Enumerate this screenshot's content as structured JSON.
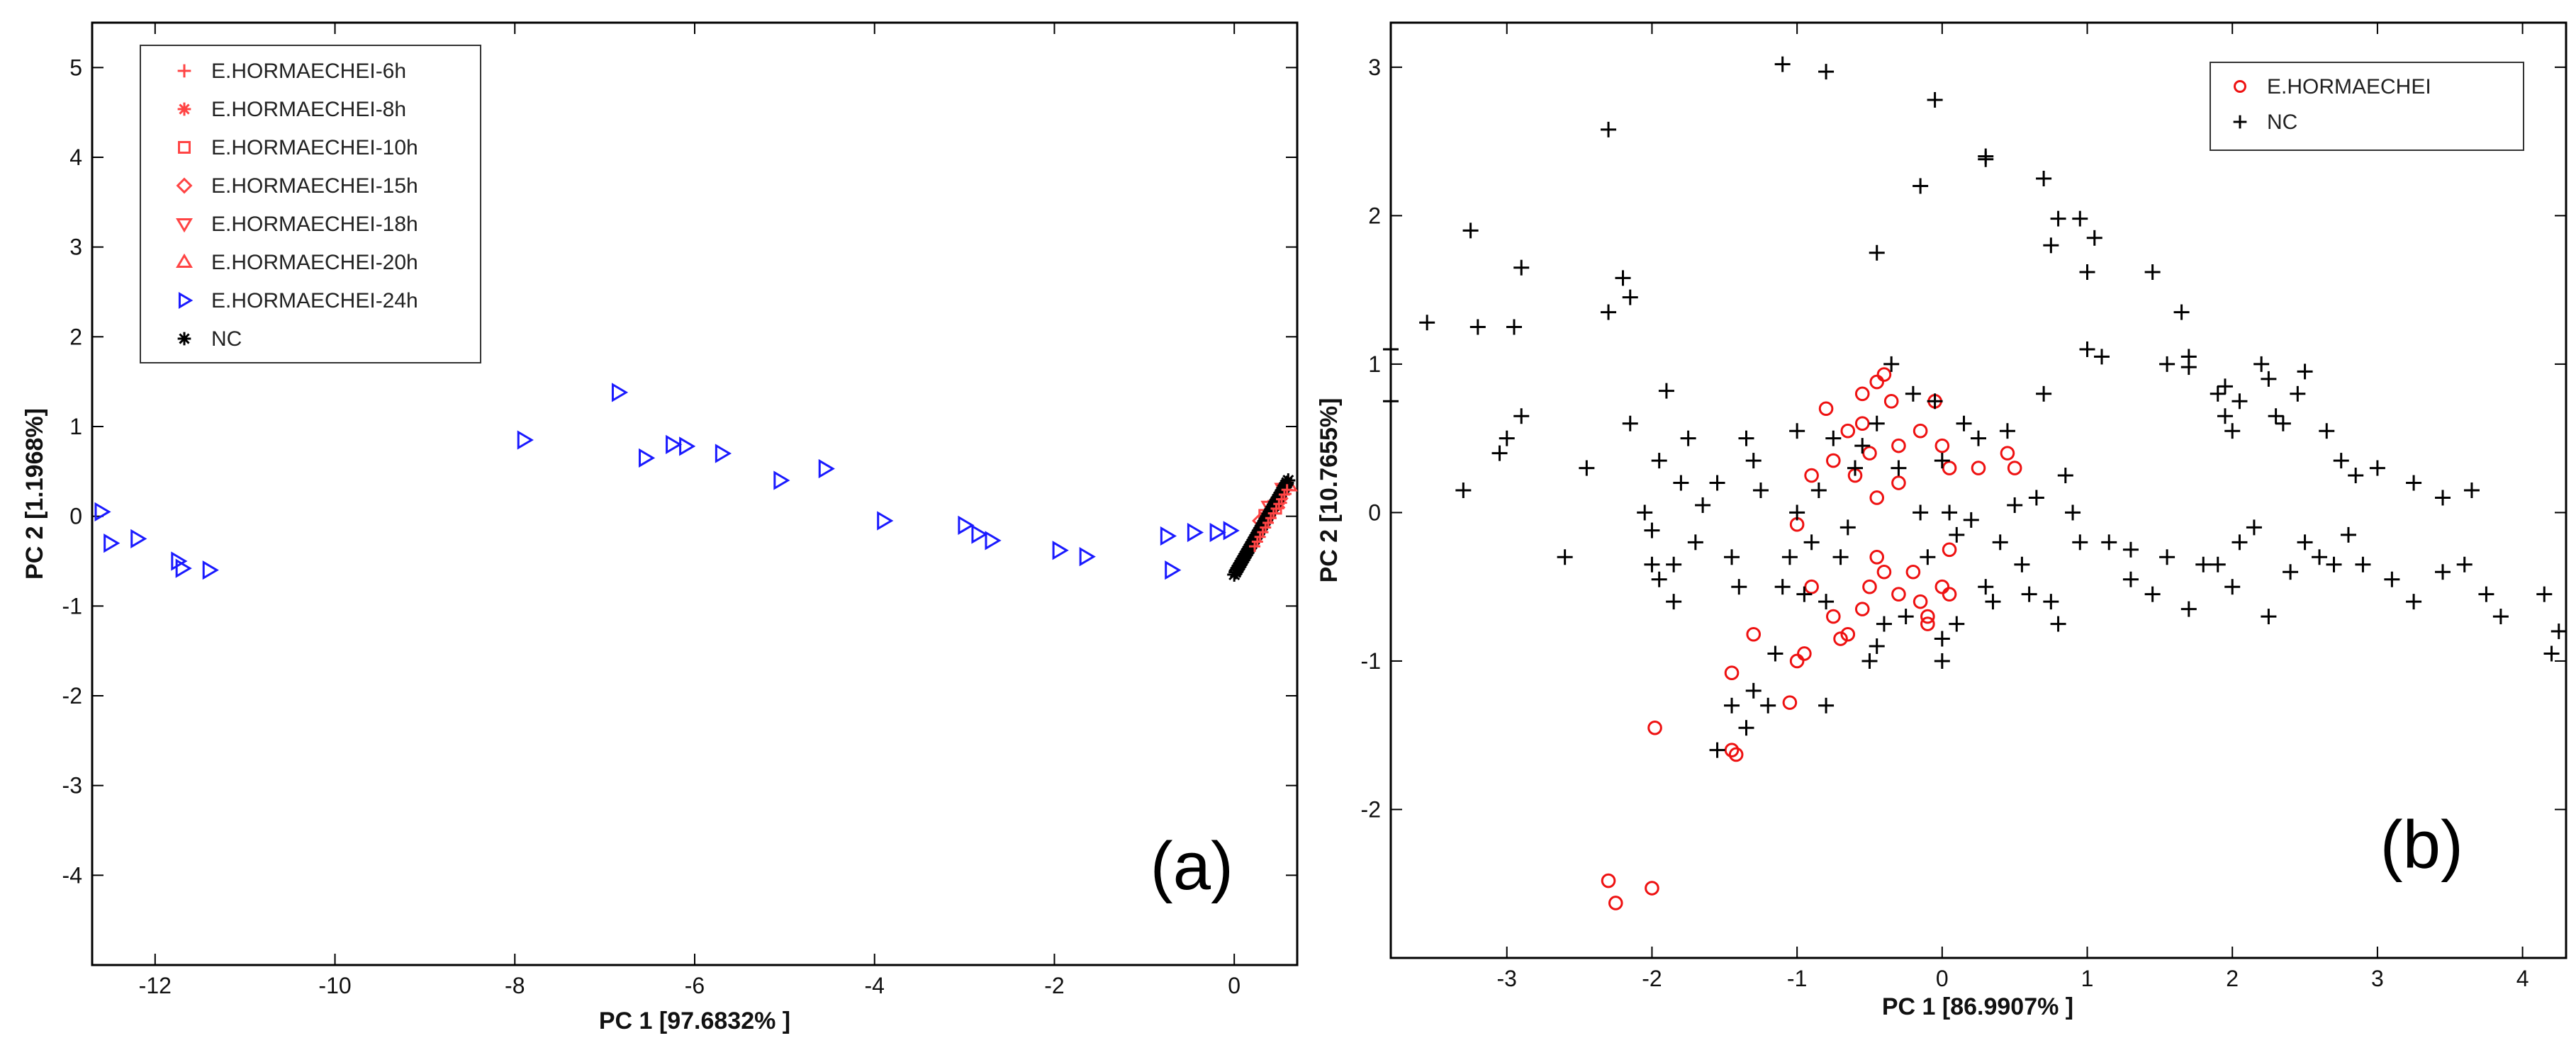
{
  "chart_data": [
    {
      "type": "scatter",
      "panel_label": "(a)",
      "xlabel": "PC 1 [97.6832% ]",
      "ylabel": "PC 2 [1.1968%]",
      "xlim": [
        -12.7,
        0.7
      ],
      "ylim": [
        -5,
        5.5
      ],
      "xticks": [
        -12,
        -10,
        -8,
        -6,
        -4,
        -2,
        0
      ],
      "yticks": [
        -4,
        -3,
        -2,
        -1,
        0,
        1,
        2,
        3,
        4,
        5
      ],
      "legend_position": "top-left",
      "series": [
        {
          "name": "E.HORMAECHEI-6h",
          "marker": "plus",
          "color": "#ff4444",
          "points": [
            [
              0.45,
              0.1
            ],
            [
              0.5,
              0.2
            ],
            [
              0.55,
              0.25
            ]
          ]
        },
        {
          "name": "E.HORMAECHEI-8h",
          "marker": "star",
          "color": "#ff4444",
          "points": [
            [
              0.4,
              0.05
            ],
            [
              0.5,
              0.15
            ]
          ]
        },
        {
          "name": "E.HORMAECHEI-10h",
          "marker": "square",
          "color": "#ff4444",
          "points": [
            [
              0.35,
              0.0
            ],
            [
              0.45,
              0.1
            ]
          ]
        },
        {
          "name": "E.HORMAECHEI-15h",
          "marker": "diamond",
          "color": "#ff4444",
          "points": [
            [
              0.3,
              -0.05
            ],
            [
              0.5,
              0.2
            ]
          ]
        },
        {
          "name": "E.HORMAECHEI-18h",
          "marker": "triangle-down",
          "color": "#ff4444",
          "points": [
            [
              0.4,
              0.1
            ],
            [
              0.55,
              0.3
            ]
          ]
        },
        {
          "name": "E.HORMAECHEI-20h",
          "marker": "triangle-up",
          "color": "#ff4444",
          "points": [
            [
              0.45,
              0.15
            ],
            [
              0.6,
              0.35
            ]
          ]
        },
        {
          "name": "E.HORMAECHEI-24h",
          "marker": "triangle-right",
          "color": "#1a1aff",
          "points": [
            [
              -12.6,
              0.05
            ],
            [
              -12.5,
              -0.3
            ],
            [
              -12.2,
              -0.25
            ],
            [
              -11.75,
              -0.5
            ],
            [
              -11.7,
              -0.58
            ],
            [
              -11.4,
              -0.6
            ],
            [
              -7.9,
              0.85
            ],
            [
              -6.85,
              1.38
            ],
            [
              -6.55,
              0.65
            ],
            [
              -6.25,
              0.8
            ],
            [
              -6.1,
              0.78
            ],
            [
              -5.7,
              0.7
            ],
            [
              -5.05,
              0.4
            ],
            [
              -4.55,
              0.53
            ],
            [
              -3.9,
              -0.05
            ],
            [
              -3.0,
              -0.1
            ],
            [
              -2.85,
              -0.2
            ],
            [
              -2.7,
              -0.27
            ],
            [
              -1.95,
              -0.38
            ],
            [
              -1.65,
              -0.45
            ],
            [
              -0.75,
              -0.22
            ],
            [
              -0.7,
              -0.6
            ],
            [
              -0.45,
              -0.18
            ],
            [
              -0.2,
              -0.18
            ],
            [
              -0.05,
              -0.16
            ]
          ]
        },
        {
          "name": "NC",
          "marker": "star",
          "color": "#000000",
          "points": []
        }
      ]
    },
    {
      "type": "scatter",
      "panel_label": "(b)",
      "xlabel": "PC 1 [86.9907% ]",
      "ylabel": "PC 2 [10.7655%]",
      "xlim": [
        -3.8,
        4.3
      ],
      "ylim": [
        -3.0,
        3.3
      ],
      "xticks": [
        -3,
        -2,
        -1,
        0,
        1,
        2,
        3,
        4
      ],
      "yticks": [
        -2,
        -1,
        0,
        1,
        2,
        3
      ],
      "legend_position": "top-right",
      "series": [
        {
          "name": "E.HORMAECHEI",
          "marker": "circle",
          "color": "#ee1111",
          "points": [
            [
              -2.3,
              -2.48
            ],
            [
              -2.25,
              -2.63
            ],
            [
              -2.0,
              -2.53
            ],
            [
              -1.98,
              -1.45
            ],
            [
              -1.45,
              -1.6
            ],
            [
              -1.42,
              -1.63
            ],
            [
              -1.45,
              -1.08
            ],
            [
              -1.3,
              -0.82
            ],
            [
              -1.05,
              -1.28
            ],
            [
              -1.0,
              -1.0
            ],
            [
              -0.95,
              -0.95
            ],
            [
              -0.9,
              -0.5
            ],
            [
              -0.75,
              -0.7
            ],
            [
              -0.7,
              -0.85
            ],
            [
              -0.65,
              -0.82
            ],
            [
              -0.55,
              -0.65
            ],
            [
              -0.5,
              -0.5
            ],
            [
              -0.45,
              -0.3
            ],
            [
              -0.4,
              -0.4
            ],
            [
              -0.3,
              -0.55
            ],
            [
              -0.2,
              -0.4
            ],
            [
              -0.1,
              -0.7
            ],
            [
              -0.1,
              -0.75
            ],
            [
              0.0,
              -0.5
            ],
            [
              0.05,
              -0.55
            ],
            [
              -1.0,
              -0.08
            ],
            [
              -0.9,
              0.25
            ],
            [
              -0.75,
              0.35
            ],
            [
              -0.65,
              0.55
            ],
            [
              -0.55,
              0.8
            ],
            [
              -0.45,
              0.88
            ],
            [
              -0.4,
              0.93
            ],
            [
              -0.35,
              0.75
            ],
            [
              -0.55,
              0.6
            ],
            [
              -0.5,
              0.4
            ],
            [
              -0.45,
              0.1
            ],
            [
              -0.3,
              0.45
            ],
            [
              -0.3,
              0.2
            ],
            [
              -0.15,
              0.55
            ],
            [
              -0.05,
              0.75
            ],
            [
              0.0,
              0.45
            ],
            [
              0.05,
              0.3
            ],
            [
              0.25,
              0.3
            ],
            [
              0.45,
              0.4
            ],
            [
              0.5,
              0.3
            ],
            [
              -0.8,
              0.7
            ],
            [
              -0.6,
              0.25
            ],
            [
              0.05,
              -0.25
            ],
            [
              -0.15,
              -0.6
            ]
          ]
        },
        {
          "name": "NC",
          "marker": "plus",
          "color": "#000000",
          "points": [
            [
              -3.8,
              1.1
            ],
            [
              -3.8,
              0.75
            ],
            [
              -3.55,
              1.28
            ],
            [
              -3.25,
              1.9
            ],
            [
              -3.2,
              1.25
            ],
            [
              -3.05,
              0.4
            ],
            [
              -3.0,
              0.5
            ],
            [
              -2.95,
              1.25
            ],
            [
              -2.9,
              1.65
            ],
            [
              -2.9,
              0.65
            ],
            [
              -3.3,
              0.15
            ],
            [
              -2.6,
              -0.3
            ],
            [
              -2.45,
              0.3
            ],
            [
              -2.3,
              2.58
            ],
            [
              -2.3,
              1.35
            ],
            [
              -2.2,
              1.58
            ],
            [
              -2.15,
              1.45
            ],
            [
              -2.15,
              0.6
            ],
            [
              -2.05,
              0.0
            ],
            [
              -2.0,
              -0.12
            ],
            [
              -2.0,
              -0.35
            ],
            [
              -1.95,
              -0.45
            ],
            [
              -1.95,
              0.35
            ],
            [
              -1.9,
              0.82
            ],
            [
              -1.85,
              -0.6
            ],
            [
              -1.85,
              -0.35
            ],
            [
              -1.8,
              0.2
            ],
            [
              -1.75,
              0.5
            ],
            [
              -1.7,
              -0.2
            ],
            [
              -1.65,
              0.05
            ],
            [
              -1.55,
              0.2
            ],
            [
              -1.45,
              -0.3
            ],
            [
              -1.4,
              -0.5
            ],
            [
              -1.35,
              0.5
            ],
            [
              -1.3,
              0.35
            ],
            [
              -1.25,
              0.15
            ],
            [
              -1.2,
              -1.3
            ],
            [
              -1.15,
              -0.95
            ],
            [
              -1.1,
              -0.5
            ],
            [
              -1.05,
              -0.3
            ],
            [
              -1.0,
              0.0
            ],
            [
              -1.0,
              0.55
            ],
            [
              -0.95,
              -0.55
            ],
            [
              -0.9,
              -0.2
            ],
            [
              -0.85,
              0.15
            ],
            [
              -0.8,
              -0.6
            ],
            [
              -0.8,
              -1.3
            ],
            [
              -0.75,
              0.5
            ],
            [
              -0.7,
              -0.3
            ],
            [
              -0.65,
              -0.1
            ],
            [
              -0.6,
              0.3
            ],
            [
              -0.55,
              0.45
            ],
            [
              -0.5,
              -1.0
            ],
            [
              -0.45,
              0.6
            ],
            [
              -0.4,
              -0.75
            ],
            [
              -0.35,
              1.0
            ],
            [
              -0.3,
              0.3
            ],
            [
              -0.25,
              -0.7
            ],
            [
              -0.2,
              0.8
            ],
            [
              -0.15,
              0.0
            ],
            [
              -0.1,
              -0.3
            ],
            [
              -0.05,
              0.75
            ],
            [
              0.0,
              0.35
            ],
            [
              0.0,
              -0.85
            ],
            [
              0.0,
              -1.0
            ],
            [
              0.05,
              0.0
            ],
            [
              0.1,
              -0.15
            ],
            [
              0.1,
              -0.75
            ],
            [
              0.15,
              0.6
            ],
            [
              0.2,
              -0.05
            ],
            [
              0.25,
              0.5
            ],
            [
              0.3,
              -0.5
            ],
            [
              0.35,
              -0.6
            ],
            [
              0.4,
              -0.2
            ],
            [
              0.45,
              0.55
            ],
            [
              0.5,
              0.05
            ],
            [
              0.55,
              -0.35
            ],
            [
              0.6,
              -0.55
            ],
            [
              0.65,
              0.1
            ],
            [
              0.7,
              0.8
            ],
            [
              0.75,
              -0.6
            ],
            [
              0.8,
              -0.75
            ],
            [
              0.85,
              0.25
            ],
            [
              0.9,
              0.0
            ],
            [
              -1.1,
              3.02
            ],
            [
              -0.8,
              2.97
            ],
            [
              -0.05,
              2.78
            ],
            [
              0.3,
              2.38
            ],
            [
              0.3,
              2.4
            ],
            [
              -0.15,
              2.2
            ],
            [
              -0.45,
              1.75
            ],
            [
              0.7,
              2.25
            ],
            [
              0.8,
              1.98
            ],
            [
              0.95,
              1.98
            ],
            [
              0.75,
              1.8
            ],
            [
              1.0,
              1.62
            ],
            [
              1.0,
              1.1
            ],
            [
              1.05,
              1.85
            ],
            [
              1.1,
              1.05
            ],
            [
              1.45,
              1.62
            ],
            [
              1.55,
              1.0
            ],
            [
              1.65,
              1.35
            ],
            [
              1.7,
              0.98
            ],
            [
              1.7,
              1.05
            ],
            [
              1.9,
              0.8
            ],
            [
              1.95,
              0.85
            ],
            [
              1.95,
              0.65
            ],
            [
              2.0,
              0.55
            ],
            [
              2.05,
              0.75
            ],
            [
              2.2,
              1.0
            ],
            [
              2.25,
              0.9
            ],
            [
              2.3,
              0.65
            ],
            [
              2.35,
              0.6
            ],
            [
              2.45,
              0.8
            ],
            [
              2.5,
              0.95
            ],
            [
              2.65,
              0.55
            ],
            [
              2.75,
              0.35
            ],
            [
              2.85,
              0.25
            ],
            [
              3.0,
              0.3
            ],
            [
              3.25,
              0.2
            ],
            [
              3.45,
              0.1
            ],
            [
              3.65,
              0.15
            ],
            [
              1.3,
              -0.45
            ],
            [
              1.45,
              -0.55
            ],
            [
              1.55,
              -0.3
            ],
            [
              1.7,
              -0.65
            ],
            [
              1.8,
              -0.35
            ],
            [
              1.9,
              -0.35
            ],
            [
              2.0,
              -0.5
            ],
            [
              2.05,
              -0.2
            ],
            [
              2.15,
              -0.1
            ],
            [
              2.25,
              -0.7
            ],
            [
              2.4,
              -0.4
            ],
            [
              2.5,
              -0.2
            ],
            [
              2.6,
              -0.3
            ],
            [
              2.7,
              -0.35
            ],
            [
              2.8,
              -0.15
            ],
            [
              2.9,
              -0.35
            ],
            [
              3.1,
              -0.45
            ],
            [
              3.25,
              -0.6
            ],
            [
              3.45,
              -0.4
            ],
            [
              3.6,
              -0.35
            ],
            [
              3.75,
              -0.55
            ],
            [
              3.85,
              -0.7
            ],
            [
              4.15,
              -0.55
            ],
            [
              4.2,
              -0.95
            ],
            [
              4.25,
              -0.8
            ],
            [
              0.95,
              -0.2
            ],
            [
              1.15,
              -0.2
            ],
            [
              1.3,
              -0.25
            ],
            [
              -1.55,
              -1.6
            ],
            [
              -1.45,
              -1.3
            ],
            [
              -1.35,
              -1.45
            ],
            [
              -1.3,
              -1.2
            ],
            [
              -0.45,
              -0.9
            ]
          ]
        }
      ]
    }
  ],
  "nc_cluster_a": {
    "note_values": [
      [
        0.0,
        -0.65
      ],
      [
        0.6,
        0.4
      ]
    ]
  }
}
